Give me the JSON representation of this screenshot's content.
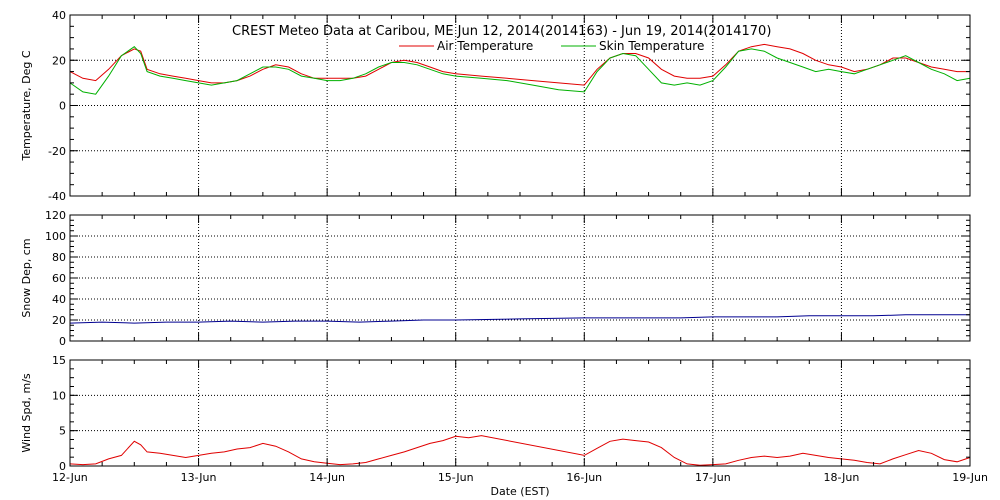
{
  "title": "CREST Meteo Data at Caribou, ME   Jun 12, 2014(2014163) - Jun 19, 2014(2014170)",
  "xlabel": "Date (EST)",
  "x_ticks": [
    "12-Jun",
    "13-Jun",
    "14-Jun",
    "15-Jun",
    "16-Jun",
    "17-Jun",
    "18-Jun",
    "19-Jun"
  ],
  "colors": {
    "air": "#e00000",
    "skin": "#00b000",
    "snow": "#000090",
    "wind": "#e00000",
    "axis": "#000000"
  },
  "chart_data": [
    {
      "type": "line",
      "ylabel": "Temperature, Deg C",
      "ylim": [
        -40,
        40
      ],
      "yticks": [
        -40,
        -20,
        0,
        20,
        40
      ],
      "xlim": [
        0,
        7
      ],
      "grid": true,
      "legend": "top-center",
      "series": [
        {
          "name": "Air Temperature",
          "color_key": "air",
          "x": [
            0,
            0.1,
            0.2,
            0.3,
            0.4,
            0.5,
            0.55,
            0.6,
            0.7,
            0.8,
            0.9,
            1.0,
            1.1,
            1.2,
            1.3,
            1.4,
            1.5,
            1.6,
            1.7,
            1.8,
            1.9,
            2.0,
            2.1,
            2.2,
            2.3,
            2.4,
            2.5,
            2.6,
            2.7,
            2.8,
            2.9,
            3.0,
            3.2,
            3.4,
            3.6,
            3.8,
            4.0,
            4.1,
            4.2,
            4.3,
            4.4,
            4.5,
            4.6,
            4.7,
            4.8,
            4.9,
            5.0,
            5.1,
            5.2,
            5.3,
            5.4,
            5.5,
            5.6,
            5.7,
            5.8,
            5.9,
            6.0,
            6.1,
            6.2,
            6.3,
            6.4,
            6.5,
            6.6,
            6.7,
            6.8,
            6.9,
            7.0
          ],
          "y": [
            15,
            12,
            11,
            16,
            22,
            25,
            24,
            16,
            14,
            13,
            12,
            11,
            10,
            10,
            11,
            13,
            16,
            18,
            17,
            14,
            12,
            12,
            12,
            12,
            13,
            16,
            19,
            20,
            19,
            17,
            15,
            14,
            13,
            12,
            11,
            10,
            9,
            16,
            21,
            23,
            23,
            21,
            16,
            13,
            12,
            12,
            13,
            18,
            24,
            26,
            27,
            26,
            25,
            23,
            20,
            18,
            17,
            15,
            16,
            18,
            21,
            21,
            19,
            17,
            16,
            15,
            15
          ]
        },
        {
          "name": "Skin Temperature",
          "color_key": "skin",
          "x": [
            0,
            0.1,
            0.2,
            0.3,
            0.4,
            0.5,
            0.55,
            0.6,
            0.7,
            0.8,
            0.9,
            1.0,
            1.1,
            1.2,
            1.3,
            1.4,
            1.5,
            1.6,
            1.7,
            1.8,
            1.9,
            2.0,
            2.1,
            2.2,
            2.3,
            2.4,
            2.5,
            2.6,
            2.7,
            2.8,
            2.9,
            3.0,
            3.2,
            3.4,
            3.6,
            3.8,
            4.0,
            4.1,
            4.2,
            4.3,
            4.4,
            4.5,
            4.6,
            4.7,
            4.8,
            4.9,
            5.0,
            5.1,
            5.2,
            5.3,
            5.4,
            5.5,
            5.6,
            5.7,
            5.8,
            5.9,
            6.0,
            6.1,
            6.2,
            6.3,
            6.4,
            6.5,
            6.6,
            6.7,
            6.8,
            6.9,
            7.0
          ],
          "y": [
            10,
            6,
            5,
            13,
            22,
            26,
            23,
            15,
            13,
            12,
            11,
            10,
            9,
            10,
            11,
            14,
            17,
            17,
            16,
            13,
            12,
            11,
            11,
            12,
            14,
            17,
            19,
            19,
            18,
            16,
            14,
            13,
            12,
            11,
            9,
            7,
            6,
            15,
            21,
            23,
            22,
            16,
            10,
            9,
            10,
            9,
            11,
            17,
            24,
            25,
            24,
            21,
            19,
            17,
            15,
            16,
            15,
            14,
            16,
            18,
            20,
            22,
            19,
            16,
            14,
            11,
            12
          ]
        }
      ]
    },
    {
      "type": "line",
      "ylabel": "Snow Dep, cm",
      "ylim": [
        0,
        120
      ],
      "yticks": [
        0,
        20,
        40,
        60,
        80,
        100,
        120
      ],
      "xlim": [
        0,
        7
      ],
      "grid": true,
      "series": [
        {
          "name": "",
          "color_key": "snow",
          "x": [
            0,
            0.25,
            0.5,
            0.75,
            1.0,
            1.25,
            1.5,
            1.75,
            2.0,
            2.25,
            2.5,
            2.75,
            3.0,
            3.5,
            4.0,
            4.25,
            4.5,
            4.75,
            5.0,
            5.25,
            5.5,
            5.75,
            6.0,
            6.25,
            6.5,
            6.75,
            7.0
          ],
          "y": [
            17,
            18,
            17,
            18,
            18,
            19,
            18,
            19,
            19,
            18,
            19,
            20,
            20,
            21,
            22,
            22,
            22,
            22,
            23,
            23,
            23,
            24,
            24,
            24,
            25,
            25,
            25
          ]
        }
      ]
    },
    {
      "type": "line",
      "ylabel": "Wind Spd, m/s",
      "ylim": [
        0,
        15
      ],
      "yticks": [
        0,
        5,
        10,
        15
      ],
      "xlim": [
        0,
        7
      ],
      "grid": true,
      "series": [
        {
          "name": "",
          "color_key": "wind",
          "x": [
            0,
            0.1,
            0.2,
            0.3,
            0.4,
            0.5,
            0.55,
            0.6,
            0.7,
            0.8,
            0.9,
            1.0,
            1.1,
            1.2,
            1.3,
            1.4,
            1.5,
            1.6,
            1.7,
            1.8,
            1.9,
            2.0,
            2.1,
            2.2,
            2.3,
            2.4,
            2.5,
            2.6,
            2.7,
            2.8,
            2.9,
            3.0,
            3.1,
            3.2,
            4.0,
            4.1,
            4.2,
            4.3,
            4.4,
            4.5,
            4.6,
            4.7,
            4.8,
            4.9,
            5.0,
            5.1,
            5.2,
            5.3,
            5.4,
            5.5,
            5.6,
            5.7,
            5.8,
            5.9,
            6.0,
            6.1,
            6.2,
            6.3,
            6.4,
            6.5,
            6.6,
            6.7,
            6.8,
            6.9,
            7.0
          ],
          "y": [
            0.3,
            0.2,
            0.3,
            1.0,
            1.5,
            3.5,
            3.0,
            2.0,
            1.8,
            1.5,
            1.2,
            1.5,
            1.8,
            2.0,
            2.4,
            2.6,
            3.2,
            2.8,
            2.0,
            1.0,
            0.6,
            0.4,
            0.2,
            0.3,
            0.5,
            1.0,
            1.5,
            2.0,
            2.6,
            3.2,
            3.6,
            4.2,
            4.0,
            4.3,
            1.5,
            2.5,
            3.5,
            3.8,
            3.6,
            3.4,
            2.6,
            1.2,
            0.3,
            0.1,
            0.2,
            0.3,
            0.8,
            1.2,
            1.4,
            1.2,
            1.4,
            1.8,
            1.5,
            1.2,
            1.0,
            0.8,
            0.5,
            0.3,
            1.0,
            1.6,
            2.2,
            1.8,
            0.9,
            0.6,
            1.2
          ]
        }
      ]
    }
  ]
}
